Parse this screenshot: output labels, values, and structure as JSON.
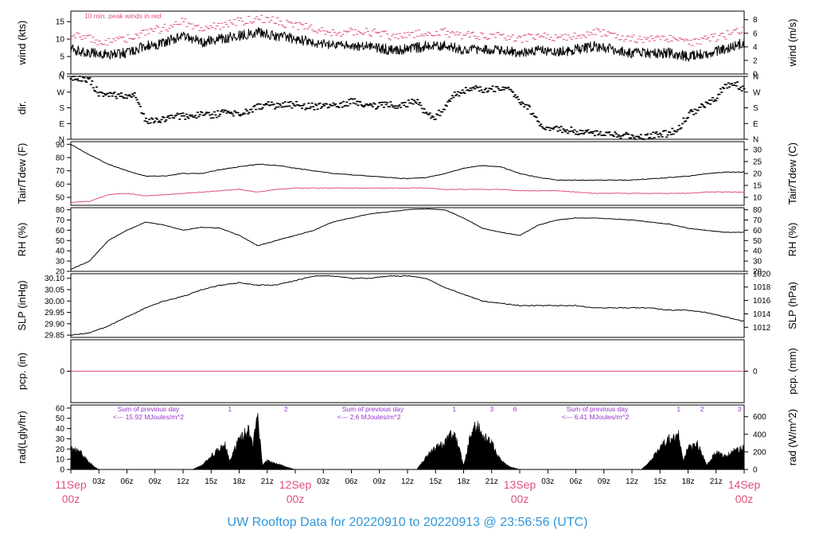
{
  "caption": "UW Rooftop Data for 20220910  to  20220913 @ 23:56:56  (UTC)",
  "colors": {
    "trace": "#000000",
    "peak": "#e0507a",
    "date": "#e0507a",
    "annotation": "#9933cc",
    "caption": "#2f97d8"
  },
  "chart_data": [
    {
      "id": "wind",
      "type": "line",
      "ylabel": "wind (kts)",
      "ylabel_right": "wind (m/s)",
      "ylim": [
        0,
        18
      ],
      "yticks": [
        0,
        5,
        10,
        15
      ],
      "yticks_right": [
        0,
        2,
        4,
        6,
        8
      ],
      "right_factor": 0.5144,
      "note": "10 min. peak winds in red",
      "series": [
        {
          "name": "wind",
          "color": "#000000",
          "x": [
            0,
            2,
            4,
            6,
            8,
            10,
            12,
            14,
            16,
            18,
            20,
            22,
            24,
            26,
            28,
            30,
            32,
            34,
            36,
            38,
            40,
            42,
            44,
            46,
            48,
            50,
            52,
            54,
            56,
            58,
            60,
            62,
            64,
            66,
            68,
            70,
            72
          ],
          "y": [
            7,
            6,
            5.5,
            6,
            8,
            9,
            11,
            9,
            10,
            11,
            12,
            11,
            10,
            9,
            8,
            8,
            8,
            7,
            7,
            8,
            8,
            7,
            7,
            7,
            6,
            7,
            6,
            7,
            8,
            7,
            6,
            6,
            6,
            5,
            6,
            7,
            9
          ]
        },
        {
          "name": "10 min. peak winds",
          "color": "#e0507a",
          "x": [
            0,
            2,
            4,
            6,
            8,
            10,
            12,
            14,
            16,
            18,
            20,
            22,
            24,
            26,
            28,
            30,
            32,
            34,
            36,
            38,
            40,
            42,
            44,
            46,
            48,
            50,
            52,
            54,
            56,
            58,
            60,
            62,
            64,
            66,
            68,
            70,
            72
          ],
          "y": [
            11,
            10,
            9,
            10,
            12,
            13,
            15,
            13,
            14,
            15,
            16,
            15,
            14,
            13,
            12,
            12,
            12,
            11,
            11,
            12,
            12,
            11,
            11,
            11,
            10,
            11,
            10,
            11,
            12,
            11,
            10,
            10,
            10,
            9,
            10,
            11,
            13
          ]
        }
      ]
    },
    {
      "id": "dir",
      "type": "scatter",
      "ylabel": "dir.",
      "ylim": [
        0,
        360
      ],
      "yticks": [
        0,
        90,
        180,
        270,
        360
      ],
      "ytick_labels": [
        "N",
        "E",
        "S",
        "W",
        "N"
      ],
      "series": [
        {
          "name": "direction",
          "color": "#000000",
          "x": [
            0,
            1,
            2,
            3,
            4,
            5,
            6,
            7,
            8,
            9,
            10,
            11,
            12,
            13,
            14,
            15,
            16,
            17,
            18,
            19,
            20,
            21,
            22,
            23,
            24,
            25,
            26,
            27,
            28,
            29,
            30,
            31,
            32,
            33,
            34,
            35,
            36,
            37,
            38,
            39,
            40,
            41,
            42,
            43,
            44,
            45,
            46,
            47,
            48,
            49,
            50,
            51,
            52,
            53,
            54,
            55,
            56,
            57,
            58,
            59,
            60,
            61,
            62,
            63,
            64,
            65,
            66,
            67,
            68,
            69,
            70,
            71,
            72
          ],
          "y": [
            355,
            340,
            340,
            260,
            255,
            250,
            255,
            250,
            100,
            110,
            120,
            125,
            135,
            130,
            140,
            135,
            150,
            150,
            145,
            160,
            190,
            195,
            190,
            195,
            200,
            185,
            190,
            185,
            190,
            195,
            220,
            210,
            195,
            190,
            200,
            195,
            205,
            215,
            140,
            130,
            180,
            250,
            280,
            300,
            285,
            290,
            280,
            280,
            220,
            180,
            90,
            70,
            60,
            55,
            45,
            40,
            35,
            30,
            25,
            20,
            20,
            15,
            20,
            25,
            35,
            60,
            140,
            170,
            200,
            240,
            300,
            320,
            290
          ]
        }
      ]
    },
    {
      "id": "temp",
      "type": "line",
      "ylabel": "Tair/Tdew (F)",
      "ylabel_right": "Tair/Tdew (C)",
      "ylim": [
        44,
        92
      ],
      "yticks": [
        50,
        60,
        70,
        80,
        90
      ],
      "yticks_right": [
        10,
        15,
        20,
        25,
        30
      ],
      "series": [
        {
          "name": "Tair",
          "color": "#000000",
          "x": [
            0,
            2,
            4,
            6,
            8,
            10,
            12,
            14,
            16,
            18,
            20,
            22,
            24,
            26,
            28,
            30,
            32,
            34,
            36,
            38,
            40,
            42,
            44,
            46,
            48,
            50,
            52,
            54,
            56,
            58,
            60,
            62,
            64,
            66,
            68,
            70,
            72
          ],
          "y": [
            90,
            82,
            75,
            70,
            66,
            66,
            68,
            68,
            71,
            73,
            75,
            74,
            72,
            70,
            68,
            67,
            66,
            65,
            64,
            65,
            68,
            72,
            74,
            73,
            68,
            65,
            63,
            63,
            63,
            63,
            63,
            64,
            65,
            66,
            68,
            69,
            69
          ]
        },
        {
          "name": "Tdew",
          "color": "#e0507a",
          "x": [
            0,
            2,
            4,
            6,
            8,
            10,
            12,
            14,
            16,
            18,
            20,
            22,
            24,
            26,
            28,
            30,
            32,
            34,
            36,
            38,
            40,
            42,
            44,
            46,
            48,
            50,
            52,
            54,
            56,
            58,
            60,
            62,
            64,
            66,
            68,
            70,
            72
          ],
          "y": [
            46,
            47,
            52,
            53,
            51,
            52,
            53,
            54,
            55,
            56,
            54,
            56,
            57,
            57,
            57,
            57,
            57,
            57,
            57,
            57,
            56,
            56,
            56,
            56,
            55,
            55,
            55,
            54,
            53,
            53,
            53,
            53,
            53,
            53,
            54,
            54,
            54
          ]
        }
      ]
    },
    {
      "id": "rh",
      "type": "line",
      "ylabel": "RH (%)",
      "ylabel_right": "RH (%)",
      "ylim": [
        20,
        82
      ],
      "yticks": [
        20,
        30,
        40,
        50,
        60,
        70,
        80
      ],
      "yticks_right": [
        20,
        30,
        40,
        50,
        60,
        70,
        80
      ],
      "series": [
        {
          "name": "RH",
          "color": "#000000",
          "x": [
            0,
            2,
            4,
            6,
            8,
            10,
            12,
            14,
            16,
            18,
            20,
            22,
            24,
            26,
            28,
            30,
            32,
            34,
            36,
            38,
            40,
            42,
            44,
            46,
            48,
            50,
            52,
            54,
            56,
            58,
            60,
            62,
            64,
            66,
            68,
            70,
            72
          ],
          "y": [
            22,
            30,
            50,
            60,
            68,
            65,
            60,
            63,
            62,
            55,
            45,
            50,
            55,
            60,
            68,
            72,
            76,
            78,
            80,
            81,
            80,
            72,
            62,
            58,
            55,
            65,
            70,
            72,
            72,
            71,
            70,
            68,
            66,
            62,
            60,
            58,
            58
          ]
        }
      ]
    },
    {
      "id": "slp",
      "type": "line",
      "ylabel": "SLP (inHg)",
      "ylabel_right": "SLP (hPa)",
      "ylim": [
        29.84,
        30.12
      ],
      "yticks": [
        29.85,
        29.9,
        29.95,
        30.0,
        30.05,
        30.1
      ],
      "ytick_labels": [
        "29.85",
        "29.90",
        "29.95",
        "30.00",
        "30.05",
        "30.10"
      ],
      "yticks_right": [
        1012,
        1014,
        1016,
        1018,
        1020
      ],
      "right_scale": "hPa",
      "series": [
        {
          "name": "SLP",
          "color": "#000000",
          "x": [
            0,
            2,
            4,
            6,
            8,
            10,
            12,
            14,
            16,
            18,
            20,
            22,
            24,
            26,
            28,
            30,
            32,
            34,
            36,
            38,
            40,
            42,
            44,
            46,
            48,
            50,
            52,
            54,
            56,
            58,
            60,
            62,
            64,
            66,
            68,
            70,
            72
          ],
          "y": [
            29.85,
            29.86,
            29.89,
            29.93,
            29.97,
            30.0,
            30.02,
            30.05,
            30.07,
            30.08,
            30.07,
            30.07,
            30.09,
            30.11,
            30.11,
            30.1,
            30.1,
            30.11,
            30.11,
            30.1,
            30.06,
            30.03,
            30.0,
            29.99,
            29.98,
            29.98,
            29.98,
            29.98,
            29.97,
            29.97,
            29.97,
            29.97,
            29.96,
            29.96,
            29.95,
            29.93,
            29.91
          ]
        }
      ]
    },
    {
      "id": "pcp",
      "type": "line",
      "ylabel": "pcp. (in)",
      "ylabel_right": "pcp. (mm)",
      "ylim": [
        -1,
        1
      ],
      "yticks": [
        0
      ],
      "yticks_right": [
        0
      ],
      "series": [
        {
          "name": "pcp",
          "color": "#e0507a",
          "x": [
            0,
            72
          ],
          "y": [
            0,
            0
          ]
        }
      ]
    },
    {
      "id": "rad",
      "type": "area",
      "ylabel": "rad(Lgly/hr)",
      "ylabel_right": "rad (W/m^2)",
      "ylim": [
        0,
        63
      ],
      "yticks": [
        0,
        10,
        20,
        30,
        40,
        50,
        60
      ],
      "yticks_right": [
        0,
        200,
        400,
        600
      ],
      "right_factor": 11.63,
      "series": [
        {
          "name": "rad",
          "color": "#000000",
          "x": [
            0,
            1,
            2,
            2.5,
            3,
            13,
            14,
            15,
            16,
            16.5,
            17,
            18,
            19,
            19.5,
            20,
            20.5,
            21,
            22,
            23,
            24,
            37,
            38,
            39,
            40,
            40.5,
            41,
            42,
            43,
            43.5,
            44,
            45,
            46,
            47,
            48,
            61,
            62,
            63,
            64,
            65,
            65.5,
            66,
            67,
            68,
            69,
            70,
            71,
            72
          ],
          "y": [
            25,
            20,
            8,
            3,
            0,
            0,
            5,
            15,
            25,
            30,
            10,
            35,
            45,
            30,
            60,
            5,
            10,
            7,
            3,
            0,
            0,
            15,
            25,
            30,
            40,
            45,
            5,
            50,
            48,
            40,
            30,
            10,
            3,
            0,
            0,
            10,
            25,
            35,
            40,
            10,
            25,
            30,
            5,
            20,
            15,
            22,
            25
          ]
        }
      ],
      "annotations": [
        {
          "text": "Sum of previous day",
          "x": 5
        },
        {
          "text": "<--- 15.92 MJoules/m^2",
          "x": 5
        },
        {
          "text": "Sum of previous day",
          "x": 29
        },
        {
          "text": "<--- 2.6 MJoules/m^2",
          "x": 29
        },
        {
          "text": "Sum of previous day",
          "x": 53
        },
        {
          "text": "<--- 6.41 MJoules/m^2",
          "x": 53
        }
      ],
      "hour_marks": [
        {
          "text": "1",
          "x": 17
        },
        {
          "text": "2",
          "x": 23
        },
        {
          "text": "1",
          "x": 41
        },
        {
          "text": "3",
          "x": 45
        },
        {
          "text": "6",
          "x": 47.5
        },
        {
          "text": "1",
          "x": 65
        },
        {
          "text": "2",
          "x": 67.5
        },
        {
          "text": "3",
          "x": 71.5
        }
      ]
    }
  ],
  "x_axis": {
    "xlim": [
      0,
      72
    ],
    "hour_ticks": [
      {
        "x": 3,
        "label": "03z"
      },
      {
        "x": 6,
        "label": "06z"
      },
      {
        "x": 9,
        "label": "09z"
      },
      {
        "x": 12,
        "label": "12z"
      },
      {
        "x": 15,
        "label": "15z"
      },
      {
        "x": 18,
        "label": "18z"
      },
      {
        "x": 21,
        "label": "21z"
      },
      {
        "x": 27,
        "label": "03z"
      },
      {
        "x": 30,
        "label": "06z"
      },
      {
        "x": 33,
        "label": "09z"
      },
      {
        "x": 36,
        "label": "12z"
      },
      {
        "x": 39,
        "label": "15z"
      },
      {
        "x": 42,
        "label": "18z"
      },
      {
        "x": 45,
        "label": "21z"
      },
      {
        "x": 51,
        "label": "03z"
      },
      {
        "x": 54,
        "label": "06z"
      },
      {
        "x": 57,
        "label": "09z"
      },
      {
        "x": 60,
        "label": "12z"
      },
      {
        "x": 63,
        "label": "15z"
      },
      {
        "x": 66,
        "label": "18z"
      },
      {
        "x": 69,
        "label": "21z"
      }
    ],
    "date_ticks": [
      {
        "x": 0,
        "day": "11Sep",
        "hour": "00z"
      },
      {
        "x": 24,
        "day": "12Sep",
        "hour": "00z"
      },
      {
        "x": 48,
        "day": "13Sep",
        "hour": "00z"
      },
      {
        "x": 72,
        "day": "14Sep",
        "hour": "00z"
      }
    ]
  }
}
